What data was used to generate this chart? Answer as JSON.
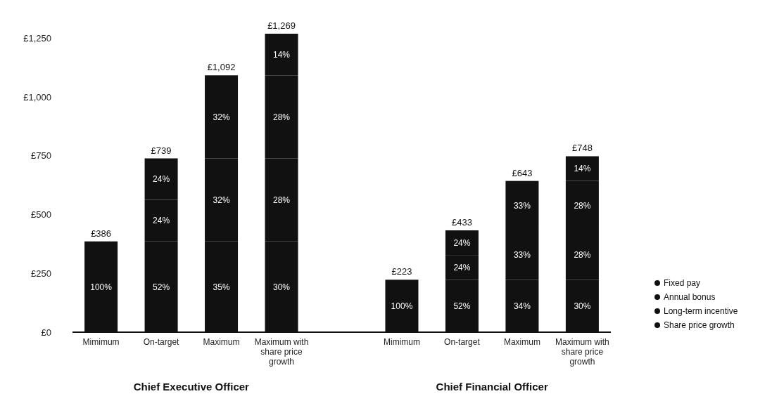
{
  "chart_data": {
    "type": "bar",
    "stacked": true,
    "categories": [
      "Mimimum",
      "On-target",
      "Maximum",
      "Maximum with share price growth",
      null,
      "Mimimum",
      "On-target",
      "Maximum",
      "Maximum with share price growth"
    ],
    "ylim": [
      0,
      1269
    ],
    "yticks": [
      {
        "value": 0,
        "label": "£0"
      },
      {
        "value": 250,
        "label": "£250"
      },
      {
        "value": 500,
        "label": "£500"
      },
      {
        "value": 750,
        "label": "£750"
      },
      {
        "value": 1000,
        "label": "£1,000"
      },
      {
        "value": 1250,
        "label": "£1,250"
      }
    ],
    "legend": "right",
    "series": [
      {
        "name": "Fixed pay",
        "color": "#111111",
        "values": [
          386,
          386,
          386,
          386,
          null,
          223,
          223,
          223,
          223
        ]
      },
      {
        "name": "Annual bonus",
        "color": "#111111",
        "values": [
          null,
          177,
          353,
          353,
          null,
          null,
          105,
          210,
          210
        ]
      },
      {
        "name": "Long-term incentive",
        "color": "#111111",
        "values": [
          null,
          176,
          353,
          353,
          null,
          null,
          105,
          210,
          210
        ]
      },
      {
        "name": "Share price growth",
        "color": "#111111",
        "values": [
          null,
          null,
          null,
          177,
          null,
          null,
          null,
          null,
          105
        ]
      }
    ],
    "totals": [
      "£386",
      "£739",
      "£1,092",
      "£1,269",
      null,
      "£223",
      "£433",
      "£643",
      "£748"
    ],
    "annotations": [
      "100%",
      "52%",
      "24%",
      "24%",
      "35%",
      "32%",
      "32%",
      "30%",
      "28%",
      "28%",
      "14%",
      "100%",
      "52%",
      "24%",
      "24%",
      "34%",
      "33%",
      "33%",
      "30%",
      "28%",
      "28%",
      "14%",
      "Chief Executive Officer",
      "Chief Financial Officer"
    ]
  }
}
